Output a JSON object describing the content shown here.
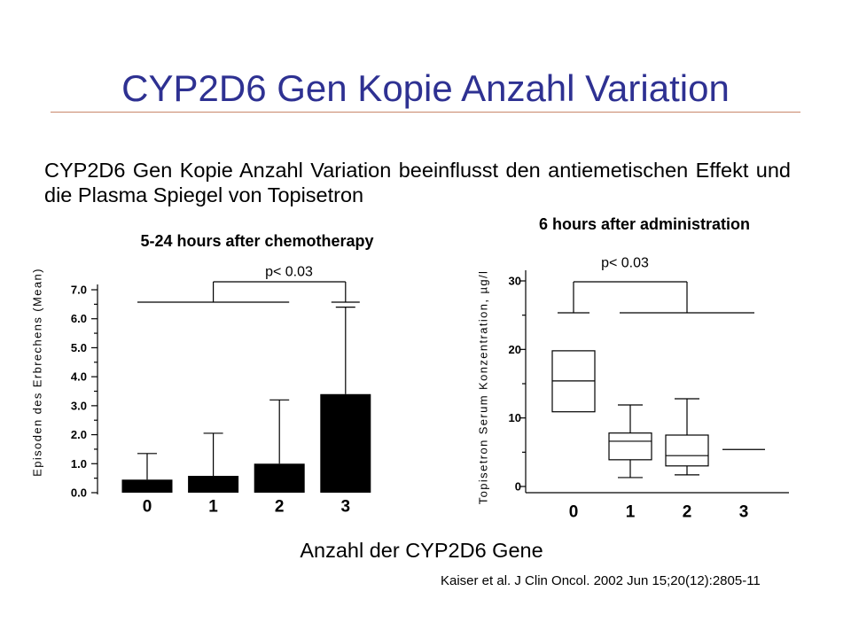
{
  "slide": {
    "title": "CYP2D6 Gen Kopie Anzahl Variation",
    "body": "CYP2D6 Gen Kopie Anzahl Variation beeinflusst den antiemetischen Effekt und die Plasma Spiegel von Topisetron",
    "x_axis_title": "Anzahl der CYP2D6 Gene",
    "citation": "Kaiser et al. J Clin Oncol. 2002 Jun 15;20(12):2805-11"
  },
  "colors": {
    "title": "#2E3192",
    "rule": "#C9876A",
    "bars": "#000000"
  },
  "chart_data": [
    {
      "type": "bar",
      "title": "5-24 hours after chemotherapy",
      "ylabel": "Episoden des Erbrechens (Mean)",
      "categories": [
        "0",
        "1",
        "2",
        "3"
      ],
      "values": [
        0.45,
        0.58,
        1.0,
        3.4
      ],
      "error_upper": [
        1.35,
        2.05,
        3.2,
        6.4
      ],
      "ylim": [
        0,
        7
      ],
      "yticks": [
        "0.0",
        "1.0",
        "2.0",
        "3.0",
        "4.0",
        "5.0",
        "6.0",
        "7.0"
      ],
      "grid": false,
      "significance": {
        "label": "p< 0.03",
        "groups": [
          [
            0,
            1,
            2
          ],
          [
            3
          ]
        ]
      }
    },
    {
      "type": "box",
      "title": "6 hours after administration",
      "ylabel": "Topisetron Serum Konzentration, µg/l",
      "categories": [
        "0",
        "1",
        "2",
        "3"
      ],
      "boxes": [
        {
          "whisker_low": null,
          "q1": 10.9,
          "median": 15.4,
          "q3": 19.8,
          "whisker_high": null
        },
        {
          "whisker_low": 1.3,
          "q1": 3.9,
          "median": 6.6,
          "q3": 7.8,
          "whisker_high": 11.9
        },
        {
          "whisker_low": 1.7,
          "q1": 3.0,
          "median": 4.5,
          "q3": 7.5,
          "whisker_high": 12.8
        },
        {
          "whisker_low": null,
          "q1": 5.4,
          "median": 5.4,
          "q3": 5.4,
          "whisker_high": null
        }
      ],
      "ylim": [
        0,
        30
      ],
      "yticks": [
        "0",
        "10",
        "20",
        "30"
      ],
      "grid": false,
      "significance": {
        "label": "p< 0.03",
        "groups": [
          [
            0
          ],
          [
            1,
            2,
            3
          ]
        ]
      }
    }
  ]
}
